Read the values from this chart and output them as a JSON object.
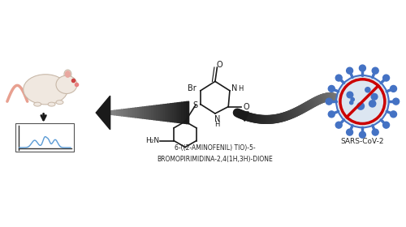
{
  "bg_color": "#ffffff",
  "title": "",
  "compound_label_line1": "6-((2-AMINOFENIL) TIO)-5-",
  "compound_label_line2": "BROMOPIRIMIDINA-2,4(1H,3H)-DIONE",
  "sars_label": "SARS-CoV-2",
  "arrow1_color": "#1a1a1a",
  "structure_color": "#1a1a1a",
  "chromatogram_color": "#5b9bd5",
  "figsize": [
    5.0,
    2.8
  ],
  "dpi": 100
}
